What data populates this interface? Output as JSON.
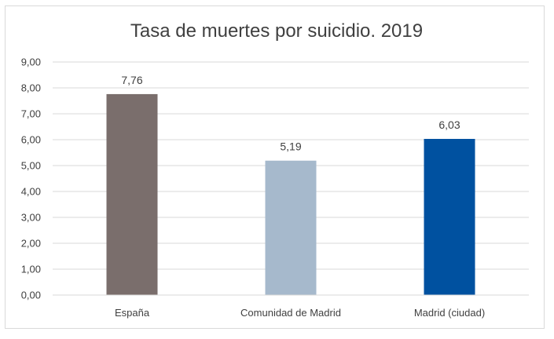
{
  "chart_data": {
    "type": "bar",
    "title": "Tasa de muertes por suicidio. 2019",
    "xlabel": "",
    "ylabel": "",
    "categories": [
      "España",
      "Comunidad de Madrid",
      "Madrid (ciudad)"
    ],
    "values": [
      7.76,
      5.19,
      6.03
    ],
    "value_labels": [
      "7,76",
      "5,19",
      "6,03"
    ],
    "bar_colors": [
      "#7a6e6c",
      "#a6b9cc",
      "#0051a0"
    ],
    "ylim": [
      0,
      9
    ],
    "yticks": [
      0,
      1,
      2,
      3,
      4,
      5,
      6,
      7,
      8,
      9
    ],
    "ytick_labels": [
      "0,00",
      "1,00",
      "2,00",
      "3,00",
      "4,00",
      "5,00",
      "6,00",
      "7,00",
      "8,00",
      "9,00"
    ],
    "grid": true,
    "legend": "none"
  }
}
